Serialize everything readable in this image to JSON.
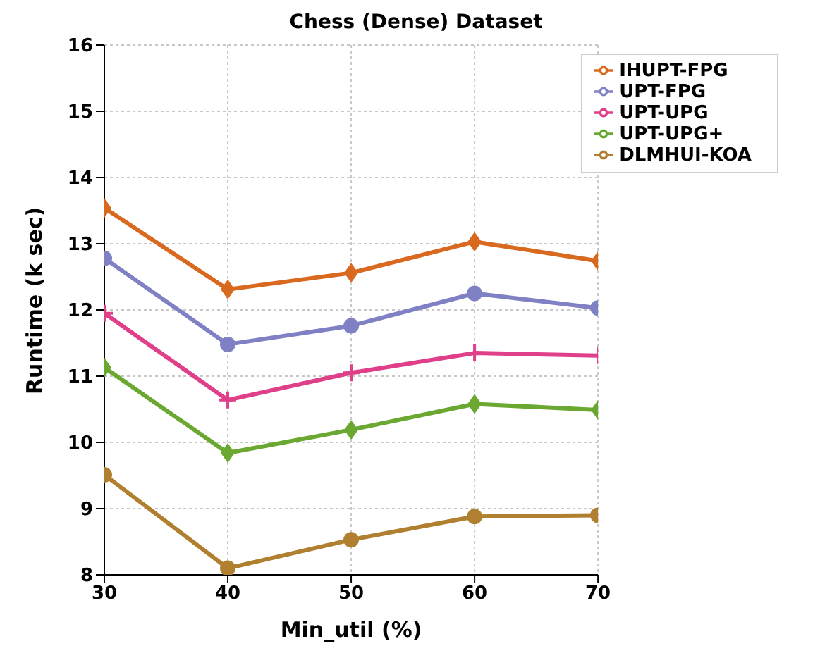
{
  "chart_data": {
    "type": "line",
    "title": "Chess (Dense) Dataset",
    "xlabel": "Min_util (%)",
    "ylabel": "Runtime (k sec)",
    "x": [
      30,
      40,
      50,
      60,
      70
    ],
    "xlim": [
      30,
      70
    ],
    "xticks": [
      30,
      40,
      50,
      60,
      70
    ],
    "ylim": [
      8,
      16
    ],
    "yticks": [
      8,
      9,
      10,
      11,
      12,
      13,
      14,
      15,
      16
    ],
    "grid": true,
    "legend": "top right",
    "line_style": "solid",
    "series": [
      {
        "name": "IHUPT-FPG",
        "color": "#d9691f",
        "marker": "diamond",
        "values": [
          13.54,
          12.31,
          12.56,
          13.03,
          12.74
        ]
      },
      {
        "name": "UPT-FPG",
        "color": "#8080c4",
        "marker": "circle",
        "values": [
          12.78,
          11.48,
          11.76,
          12.25,
          12.03
        ]
      },
      {
        "name": "UPT-UPG",
        "color": "#e0408a",
        "marker": "cross",
        "values": [
          11.95,
          10.64,
          11.05,
          11.35,
          11.31
        ]
      },
      {
        "name": "UPT-UPG+",
        "color": "#6aa832",
        "marker": "diamond",
        "values": [
          11.13,
          9.84,
          10.19,
          10.58,
          10.49
        ]
      },
      {
        "name": "DLMHUI-KOA",
        "color": "#b08030",
        "marker": "circle",
        "values": [
          9.51,
          8.1,
          8.53,
          8.88,
          8.9
        ]
      }
    ]
  }
}
